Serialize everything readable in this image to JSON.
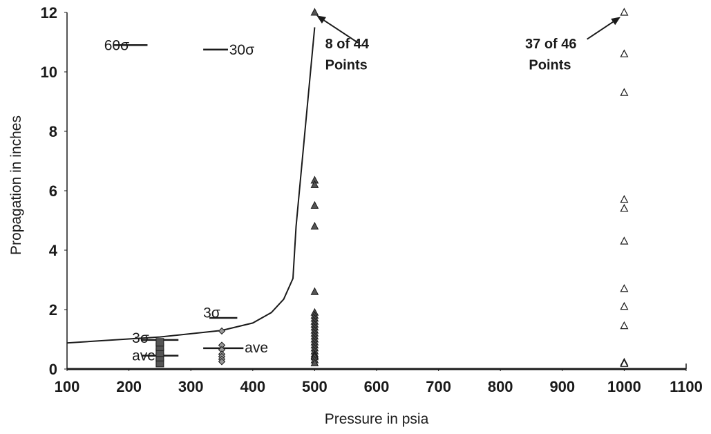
{
  "chart_data": {
    "type": "scatter",
    "title": "",
    "xlabel": "Pressure in psia",
    "ylabel": "Propagation in inches",
    "xlim": [
      100,
      1100
    ],
    "ylim": [
      0,
      12
    ],
    "x_ticks": [
      {
        "label": "100",
        "value": 100
      },
      {
        "label": "200",
        "value": 200
      },
      {
        "label": "300",
        "value": 300
      },
      {
        "label": "400",
        "value": 400
      },
      {
        "label": "500",
        "value": 500
      },
      {
        "label": "600",
        "value": 600
      },
      {
        "label": "700",
        "value": 700
      },
      {
        "label": "800",
        "value": 800
      },
      {
        "label": "900",
        "value": 900
      },
      {
        "label": "1000",
        "value": 1000
      },
      {
        "label": "1100",
        "value": 1100
      }
    ],
    "y_ticks": [
      {
        "label": "0",
        "value": 0
      },
      {
        "label": "2",
        "value": 2
      },
      {
        "label": "4",
        "value": 4
      },
      {
        "label": "6",
        "value": 6
      },
      {
        "label": "8",
        "value": 8
      },
      {
        "label": "10",
        "value": 10
      },
      {
        "label": "12",
        "value": 12
      }
    ],
    "grid": false,
    "legend": "none",
    "colors": {
      "axis": "#1a1a1a",
      "marker_fill": "#555555",
      "open_marker_fill": "#ffffff"
    },
    "curve": {
      "x": [
        100,
        250,
        350,
        400,
        430,
        450,
        465,
        470,
        500
      ],
      "y": [
        0.88,
        1.08,
        1.3,
        1.55,
        1.9,
        2.35,
        3.05,
        4.8,
        11.5
      ]
    },
    "series": [
      {
        "marker": "square",
        "x": [
          250,
          250,
          250,
          250,
          250
        ],
        "y": [
          0.2,
          0.4,
          0.55,
          0.75,
          0.9
        ]
      },
      {
        "marker": "diamond",
        "x": [
          350,
          350,
          350,
          350,
          350,
          350,
          350
        ],
        "y": [
          1.28,
          0.8,
          0.65,
          0.5,
          0.42,
          0.33,
          0.25
        ]
      },
      {
        "marker": "triangle",
        "x": [
          500,
          500,
          500,
          500,
          500,
          500,
          500,
          500,
          500,
          500,
          500,
          500,
          500,
          500,
          500,
          500,
          500,
          500,
          500,
          500,
          500,
          500,
          500,
          500,
          500
        ],
        "y": [
          12,
          6.35,
          6.2,
          5.5,
          4.8,
          2.6,
          1.9,
          1.8,
          1.7,
          1.6,
          1.5,
          1.4,
          1.3,
          1.2,
          1.1,
          1.0,
          0.9,
          0.8,
          0.7,
          0.6,
          0.5,
          0.45,
          0.4,
          0.3,
          0.2
        ]
      },
      {
        "marker": "triangle-open",
        "x": [
          1000,
          1000,
          1000,
          1000,
          1000,
          1000,
          1000,
          1000,
          1000,
          1000,
          1000
        ],
        "y": [
          12,
          10.6,
          9.3,
          5.7,
          5.4,
          4.3,
          2.7,
          2.1,
          1.45,
          0.22,
          0.18
        ]
      }
    ],
    "sigma_lines": [
      {
        "x1": 175,
        "x2": 230,
        "y": 10.9
      },
      {
        "x1": 320,
        "x2": 360,
        "y": 10.75
      },
      {
        "x1": 330,
        "x2": 375,
        "y": 1.72
      },
      {
        "x1": 220,
        "x2": 280,
        "y": 0.98
      },
      {
        "x1": 220,
        "x2": 280,
        "y": 0.45
      },
      {
        "x1": 320,
        "x2": 385,
        "y": 0.7
      }
    ],
    "annotations": [
      {
        "text": "60σ",
        "x": 160,
        "y": 10.9,
        "style": "plain"
      },
      {
        "text": "30σ",
        "x": 362,
        "y": 10.75,
        "style": "plain"
      },
      {
        "text": "3σ",
        "x": 320,
        "y": 1.9,
        "style": "plain"
      },
      {
        "text": "3σ",
        "x": 205,
        "y": 1.05,
        "style": "plain"
      },
      {
        "text": "ave",
        "x": 205,
        "y": 0.45,
        "style": "plain"
      },
      {
        "text": "ave",
        "x": 387,
        "y": 0.72,
        "style": "plain"
      },
      {
        "text": "8 of 44",
        "x": 517,
        "y": 10.95,
        "style": "bold"
      },
      {
        "text": "Points",
        "x": 517,
        "y": 10.25,
        "style": "bold"
      },
      {
        "text": "37 of 46",
        "x": 840,
        "y": 10.95,
        "style": "bold"
      },
      {
        "text": "Points",
        "x": 846,
        "y": 10.25,
        "style": "bold"
      }
    ],
    "arrows": [
      {
        "from_x": 570,
        "from_y": 10.98,
        "to_x": 503,
        "to_y": 11.9
      },
      {
        "from_x": 940,
        "from_y": 11.1,
        "to_x": 994,
        "to_y": 11.85
      }
    ]
  }
}
